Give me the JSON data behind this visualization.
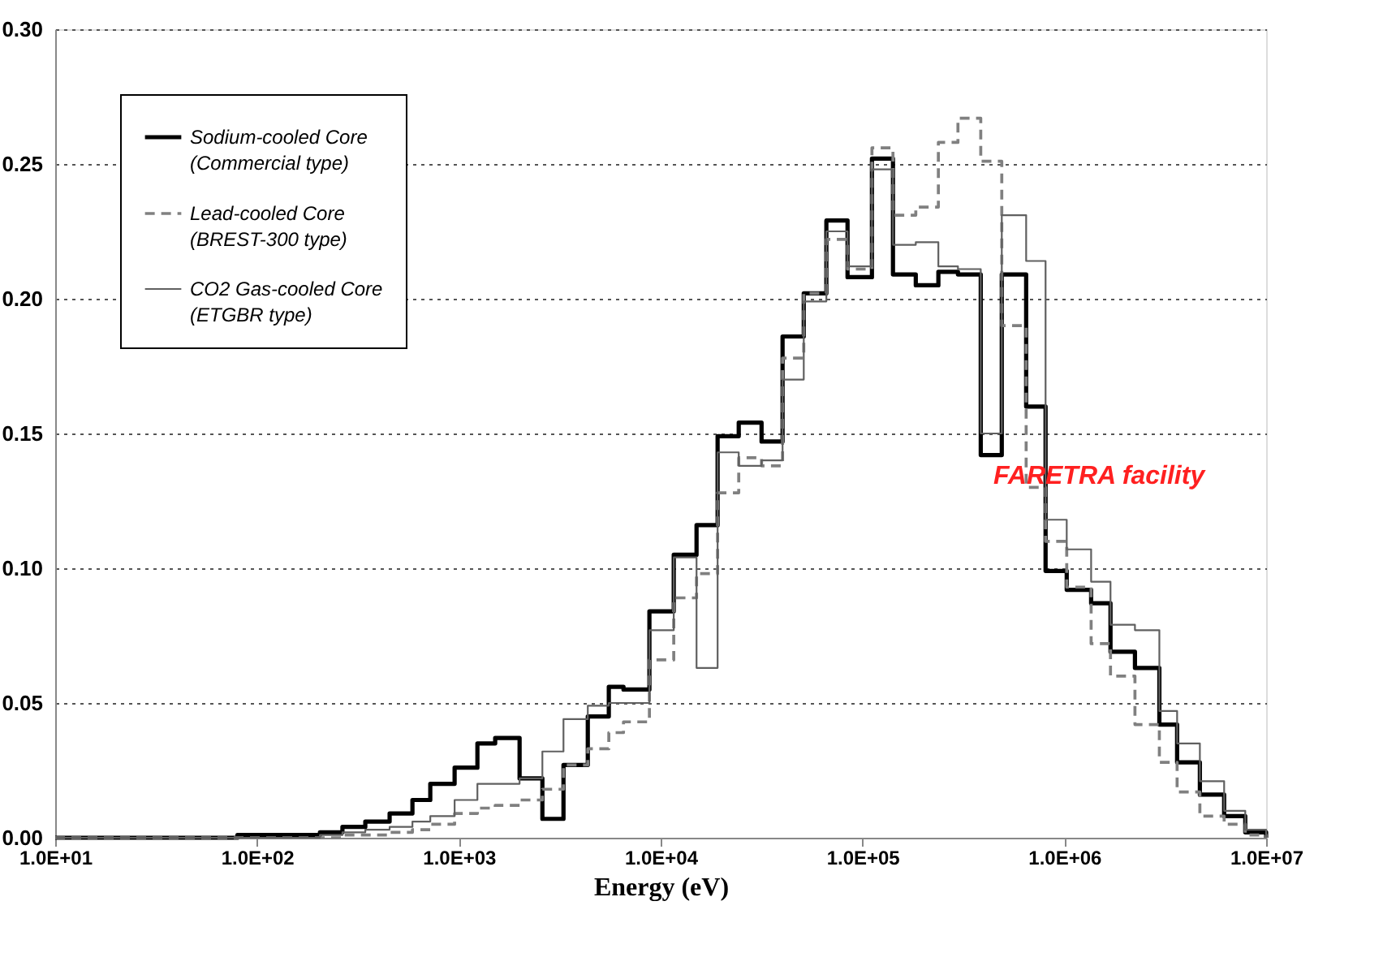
{
  "chart_data": {
    "type": "step",
    "xlabel": "Energy (eV)",
    "log": "x",
    "xlim": [
      10,
      10000000
    ],
    "ylim": [
      0,
      0.3
    ],
    "xticks": [
      {
        "value": 10,
        "label": "1.0E+01"
      },
      {
        "value": 100,
        "label": "1.0E+02"
      },
      {
        "value": 1000,
        "label": "1.0E+03"
      },
      {
        "value": 10000,
        "label": "1.0E+04"
      },
      {
        "value": 100000,
        "label": "1.0E+05"
      },
      {
        "value": 1000000,
        "label": "1.0E+06"
      },
      {
        "value": 10000000,
        "label": "1.0E+07"
      }
    ],
    "yticks": [
      {
        "value": 0,
        "label": "0.00"
      },
      {
        "value": 0.05,
        "label": "0.05"
      },
      {
        "value": 0.1,
        "label": "0.10"
      },
      {
        "value": 0.15,
        "label": "0.15"
      },
      {
        "value": 0.2,
        "label": "0.20"
      },
      {
        "value": 0.25,
        "label": "0.25"
      },
      {
        "value": 0.3,
        "label": "0.30"
      }
    ],
    "grid": "y",
    "legend": "top left",
    "x": [
      10,
      80,
      205,
      265,
      344,
      454,
      589,
      722,
      953,
      1236,
      1514,
      2000,
      2594,
      3300,
      4355,
      5535,
      6544,
      8796,
      11610,
      15060,
      19150,
      24370,
      31620,
      40180,
      51170,
      66230,
      84330,
      111400,
      141600,
      183700,
      237700,
      297200,
      385500,
      490000,
      647100,
      807600,
      1028000,
      1358000,
      1694000,
      2239000,
      2958000,
      3622000,
      4696000,
      6194000,
      7882000,
      10000000
    ],
    "series": [
      {
        "name": "Sodium-cooled Core\n(Commercial type)",
        "color": "#000000",
        "line_style": "solid",
        "values": [
          0,
          0.001,
          0.002,
          0.004,
          0.006,
          0.009,
          0.014,
          0.02,
          0.026,
          0.035,
          0.037,
          0.022,
          0.007,
          0.027,
          0.045,
          0.056,
          0.055,
          0.084,
          0.105,
          0.116,
          0.149,
          0.154,
          0.147,
          0.186,
          0.202,
          0.229,
          0.208,
          0.252,
          0.209,
          0.205,
          0.21,
          0.209,
          0.142,
          0.209,
          0.16,
          0.099,
          0.092,
          0.087,
          0.069,
          0.063,
          0.042,
          0.028,
          0.016,
          0.008,
          0.002,
          0
        ]
      },
      {
        "name": "Lead-cooled Core\n(BREST-300 type)",
        "color": "#808080",
        "line_style": "dashed",
        "values": [
          0,
          0,
          0,
          0.001,
          0.001,
          0.002,
          0.003,
          0.005,
          0.009,
          0.011,
          0.012,
          0.014,
          0.018,
          0.027,
          0.033,
          0.039,
          0.043,
          0.066,
          0.089,
          0.098,
          0.128,
          0.141,
          0.138,
          0.178,
          0.202,
          0.222,
          0.211,
          0.256,
          0.231,
          0.234,
          0.258,
          0.267,
          0.251,
          0.19,
          0.13,
          0.11,
          0.093,
          0.072,
          0.06,
          0.042,
          0.028,
          0.017,
          0.008,
          0.005,
          0.001,
          0
        ]
      },
      {
        "name": "CO2 Gas-cooled Core\n(ETGBR type)",
        "color": "#606060",
        "line_style": "solid",
        "values": [
          0,
          0,
          0.001,
          0.002,
          0.003,
          0.004,
          0.006,
          0.008,
          0.014,
          0.02,
          0.02,
          0.022,
          0.032,
          0.044,
          0.049,
          0.05,
          0.05,
          0.077,
          0.104,
          0.063,
          0.143,
          0.138,
          0.14,
          0.17,
          0.199,
          0.225,
          0.212,
          0.248,
          0.22,
          0.221,
          0.212,
          0.211,
          0.15,
          0.231,
          0.214,
          0.118,
          0.107,
          0.095,
          0.079,
          0.077,
          0.047,
          0.035,
          0.021,
          0.01,
          0.003,
          0
        ]
      }
    ],
    "annotations": [
      "FARETRA  facility"
    ]
  }
}
